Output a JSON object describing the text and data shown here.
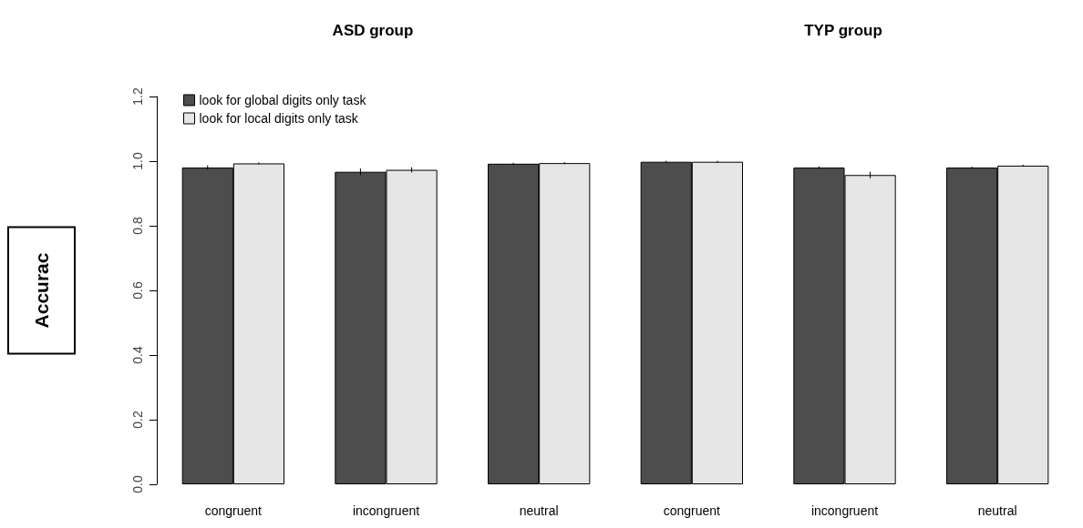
{
  "chart_data": {
    "type": "bar",
    "ylabel": "Accurac",
    "annotations": [
      "ASD group",
      "TYP group"
    ],
    "categories": [
      "congruent",
      "incongruent",
      "neutral",
      "congruent",
      "incongruent",
      "neutral"
    ],
    "series": [
      {
        "name": "look for global digits only task",
        "color": "#4d4d4d",
        "values": [
          0.98,
          0.967,
          0.992,
          0.998,
          0.98,
          0.98
        ],
        "errors": [
          0.007,
          0.01,
          0.003,
          0.003,
          0.004,
          0.003
        ]
      },
      {
        "name": "look for local digits only task",
        "color": "#e6e6e6",
        "values": [
          0.993,
          0.973,
          0.994,
          0.998,
          0.957,
          0.986
        ],
        "errors": [
          0.003,
          0.008,
          0.003,
          0.003,
          0.01,
          0.003
        ]
      }
    ],
    "ylim": [
      0,
      1.2
    ],
    "yticks": [
      {
        "value": 0,
        "label": "0.0"
      },
      0.2,
      0.4,
      0.6,
      0.8,
      {
        "value": 1,
        "label": "1.0"
      },
      1.2
    ],
    "grid": false,
    "legend": "top left"
  }
}
